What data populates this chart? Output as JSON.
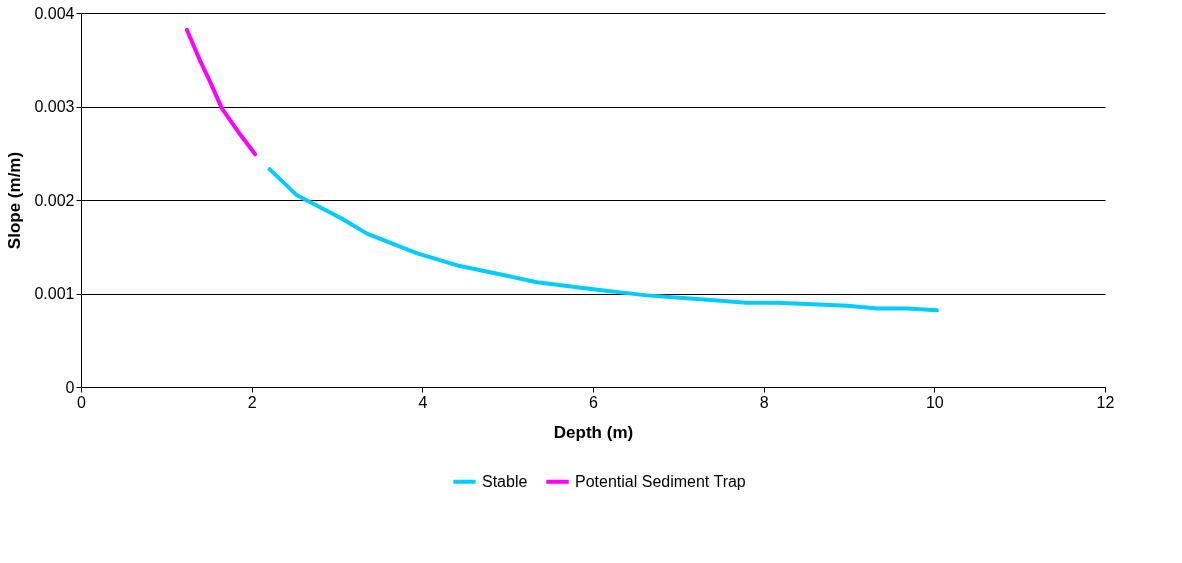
{
  "chart_data": {
    "type": "line",
    "xlabel": "Depth (m)",
    "ylabel": "Slope (m/m)",
    "xlim": [
      0,
      12
    ],
    "xticks": [
      0,
      2,
      4,
      6,
      8,
      10,
      12
    ],
    "ylim": [
      0,
      0.004
    ],
    "yticks": [
      0,
      0.001,
      0.002,
      0.003,
      0.004
    ],
    "grid": "y",
    "legend": "bottom",
    "marker": "none",
    "line_style": "solid",
    "series": [
      {
        "name": "Stable",
        "color": "#00ccff",
        "x": [
          2.21,
          2.53,
          3.06,
          3.35,
          3.94,
          4.41,
          4.99,
          5.34,
          6.05,
          6.63,
          7.22,
          7.8,
          8.16,
          8.98,
          9.33,
          9.68,
          10.03
        ],
        "values": [
          0.00233,
          0.00205,
          0.0018,
          0.00164,
          0.00143,
          0.0013,
          0.00119,
          0.00112,
          0.00104,
          0.00098,
          0.00094,
          0.0009,
          0.0009,
          0.00087,
          0.00084,
          0.00084,
          0.00082
        ]
      },
      {
        "name": "Potential Sediment Trap",
        "color": "#ff00ff",
        "x": [
          1.24,
          1.4,
          1.52,
          1.65,
          1.85,
          2.04
        ],
        "values": [
          0.00382,
          0.00348,
          0.00325,
          0.00298,
          0.00272,
          0.00249
        ]
      }
    ]
  }
}
